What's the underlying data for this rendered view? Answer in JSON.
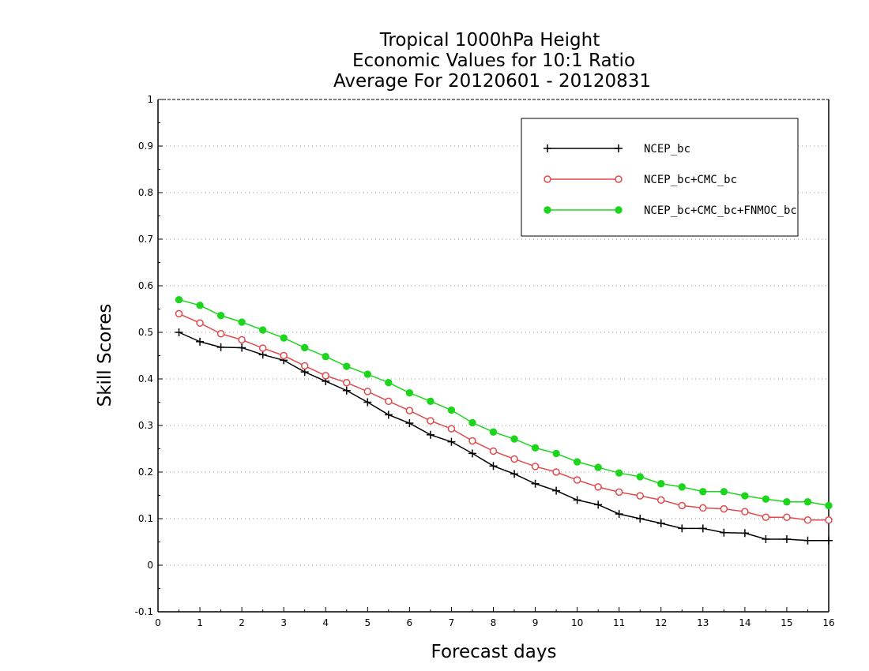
{
  "chart_data": {
    "type": "line",
    "title_lines": [
      "Tropical 1000hPa Height",
      "Economic Values for 10:1 Ratio",
      "Average For 20120601 - 20120831"
    ],
    "xlabel": "Forecast days",
    "ylabel": "Skill Scores",
    "xlim": [
      0,
      16
    ],
    "ylim": [
      -0.1,
      1
    ],
    "xticks": [
      "0",
      "1",
      "2",
      "3",
      "4",
      "5",
      "6",
      "7",
      "8",
      "9",
      "10",
      "11",
      "12",
      "13",
      "14",
      "15",
      "16"
    ],
    "yticks": [
      "-0.1",
      "0",
      "0.1",
      "0.2",
      "0.3",
      "0.4",
      "0.5",
      "0.6",
      "0.7",
      "0.8",
      "0.9",
      "1"
    ],
    "grid": "horizontal-dotted",
    "legend_position": "top-right",
    "x": [
      0.5,
      1,
      1.5,
      2,
      2.5,
      3,
      3.5,
      4,
      4.5,
      5,
      5.5,
      6,
      6.5,
      7,
      7.5,
      8,
      8.5,
      9,
      9.5,
      10,
      10.5,
      11,
      11.5,
      12,
      12.5,
      13,
      13.5,
      14,
      14.5,
      15,
      15.5,
      16
    ],
    "series": [
      {
        "name": "NCEP_bc",
        "color": "#000000",
        "marker": "plus",
        "values": [
          0.5,
          0.48,
          0.468,
          0.467,
          0.452,
          0.44,
          0.415,
          0.395,
          0.375,
          0.35,
          0.323,
          0.305,
          0.28,
          0.265,
          0.24,
          0.213,
          0.196,
          0.175,
          0.16,
          0.14,
          0.13,
          0.11,
          0.1,
          0.09,
          0.079,
          0.079,
          0.07,
          0.069,
          0.056,
          0.056,
          0.053,
          0.053
        ]
      },
      {
        "name": "NCEP_bc+CMC_bc",
        "color": "#e04a4a",
        "marker": "open-circle",
        "values": [
          0.54,
          0.52,
          0.497,
          0.484,
          0.466,
          0.45,
          0.428,
          0.407,
          0.392,
          0.373,
          0.352,
          0.332,
          0.31,
          0.293,
          0.267,
          0.245,
          0.228,
          0.212,
          0.2,
          0.183,
          0.168,
          0.157,
          0.149,
          0.14,
          0.128,
          0.123,
          0.121,
          0.115,
          0.103,
          0.103,
          0.097,
          0.097
        ]
      },
      {
        "name": "NCEP_bc+CMC_bc+FNMOC_bc",
        "color": "#1ed51e",
        "marker": "filled-circle",
        "values": [
          0.57,
          0.558,
          0.536,
          0.522,
          0.505,
          0.488,
          0.467,
          0.448,
          0.427,
          0.41,
          0.392,
          0.37,
          0.352,
          0.333,
          0.306,
          0.286,
          0.271,
          0.252,
          0.24,
          0.222,
          0.21,
          0.198,
          0.19,
          0.175,
          0.168,
          0.158,
          0.158,
          0.149,
          0.142,
          0.136,
          0.136,
          0.128
        ]
      }
    ]
  }
}
